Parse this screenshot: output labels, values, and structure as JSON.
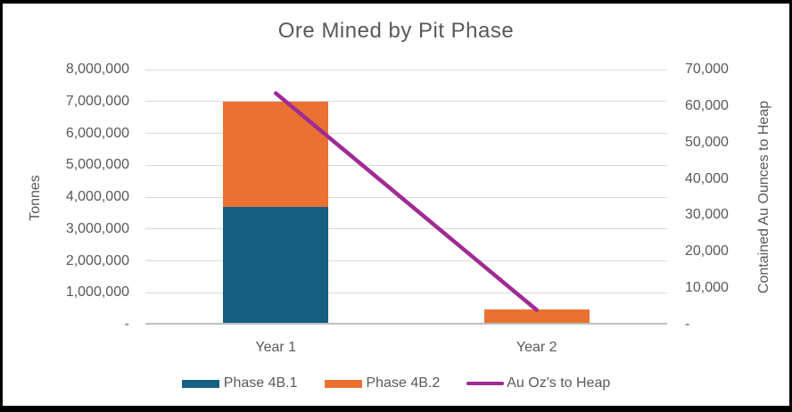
{
  "chart_data": {
    "type": "combo-stacked-bar-line",
    "title": "Ore Mined by Pit Phase",
    "categories": [
      "Year 1",
      "Year 2"
    ],
    "bar_series": [
      {
        "name": "Phase 4B.1",
        "values": [
          3650000,
          0
        ],
        "color": "#156082"
      },
      {
        "name": "Phase 4B.2",
        "values": [
          3300000,
          430000
        ],
        "color": "#E97132"
      }
    ],
    "line_series": [
      {
        "name": "Au Oz's to Heap",
        "values": [
          63500,
          4000
        ],
        "color": "#A02B93",
        "axis": "right"
      }
    ],
    "left_axis": {
      "label": "Tonnes",
      "min": 0,
      "max": 8000000,
      "step": 1000000,
      "tick_labels": [
        "8,000,000",
        "7,000,000",
        "6,000,000",
        "5,000,000",
        "4,000,000",
        "3,000,000",
        "2,000,000",
        "1,000,000",
        "-"
      ]
    },
    "right_axis": {
      "label": "Contained Au Ounces to Heap",
      "min": 0,
      "max": 70000,
      "step": 10000,
      "tick_labels": [
        "70,000",
        "60,000",
        "50,000",
        "40,000",
        "30,000",
        "20,000",
        "10,000",
        "-"
      ]
    },
    "legend": {
      "position": "bottom",
      "items": [
        "Phase 4B.1",
        "Phase 4B.2",
        "Au Oz's to Heap"
      ]
    },
    "grid": true,
    "colors": {
      "text": "#595959",
      "gridline": "#D9D9D9",
      "axis_line": "#BFBFBF",
      "frame_border": "#000000",
      "background": "#FFFFFF"
    }
  }
}
